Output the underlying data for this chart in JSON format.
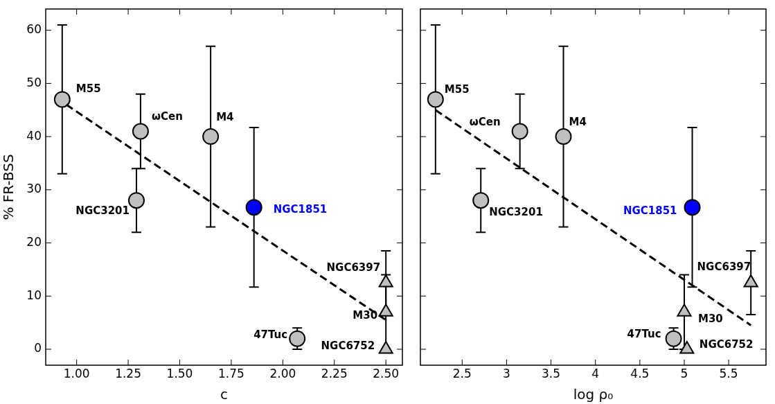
{
  "chart_data": [
    {
      "type": "scatter",
      "xlabel": "c",
      "ylabel": "% FR-BSS",
      "xlim": [
        0.85,
        2.58
      ],
      "xticks": [
        {
          "value": 1,
          "label": "1.00"
        },
        {
          "value": 1.25,
          "label": "1.25"
        },
        {
          "value": 1.5,
          "label": "1.50"
        },
        {
          "value": 1.75,
          "label": "1.75"
        },
        {
          "value": 2,
          "label": "2.00"
        },
        {
          "value": 2.25,
          "label": "2.25"
        },
        {
          "value": 2.5,
          "label": "2.50"
        }
      ],
      "ylim": [
        -3,
        64
      ],
      "yticks": [
        0,
        10,
        20,
        30,
        40,
        50,
        60
      ],
      "series": [
        {
          "name": "M55",
          "color": "#c0c0c0",
          "marker": "circle",
          "x": [
            0.93
          ],
          "values": [
            47
          ],
          "errors": [
            [
              33,
              61
            ]
          ]
        },
        {
          "name": "ωCen",
          "color": "#c0c0c0",
          "marker": "circle",
          "x": [
            1.31
          ],
          "values": [
            41
          ],
          "errors": [
            [
              34,
              48
            ]
          ]
        },
        {
          "name": "NGC3201",
          "color": "#c0c0c0",
          "marker": "circle",
          "x": [
            1.29
          ],
          "values": [
            28
          ],
          "errors": [
            [
              22,
              34
            ]
          ]
        },
        {
          "name": "M4",
          "color": "#c0c0c0",
          "marker": "circle",
          "x": [
            1.65
          ],
          "values": [
            40
          ],
          "errors": [
            [
              23,
              57
            ]
          ]
        },
        {
          "name": "NGC1851",
          "color": "#0000ff",
          "marker": "circle",
          "x": [
            1.86
          ],
          "values": [
            26.7
          ],
          "errors": [
            [
              11.7,
              41.7
            ]
          ]
        },
        {
          "name": "47Tuc",
          "color": "#c0c0c0",
          "marker": "circle",
          "x": [
            2.07
          ],
          "values": [
            2
          ],
          "errors": [
            [
              0,
              4
            ]
          ]
        },
        {
          "name": "NGC6397",
          "color": "#c0c0c0",
          "marker": "triangle",
          "x": [
            2.5
          ],
          "values": [
            12.5
          ],
          "errors": [
            [
              6.5,
              18.5
            ]
          ]
        },
        {
          "name": "M30",
          "color": "#c0c0c0",
          "marker": "triangle",
          "x": [
            2.5
          ],
          "values": [
            7
          ],
          "errors": [
            [
              0,
              14
            ]
          ]
        },
        {
          "name": "NGC6752",
          "color": "#c0c0c0",
          "marker": "triangle",
          "x": [
            2.5
          ],
          "values": [
            0
          ]
        },
        {
          "type": "line",
          "color": "#000000",
          "line_style": "dashed",
          "marker": "none",
          "x": [
            0.95,
            2.5
          ],
          "values": [
            46,
            5.5
          ]
        }
      ]
    },
    {
      "type": "scatter",
      "xlabel": "log ρ₀",
      "xlim": [
        2.03,
        5.92
      ],
      "xticks": [
        2.5,
        3.0,
        3.5,
        4.0,
        4.5,
        5.0,
        5.5
      ],
      "ylim": [
        -3,
        64
      ],
      "yticks": [
        0,
        10,
        20,
        30,
        40,
        50,
        60
      ],
      "tick_labels": "x",
      "series": [
        {
          "name": "M55",
          "color": "#c0c0c0",
          "marker": "circle",
          "x": [
            2.2
          ],
          "values": [
            47
          ],
          "errors": [
            [
              33,
              61
            ]
          ]
        },
        {
          "name": "NGC3201",
          "color": "#c0c0c0",
          "marker": "circle",
          "x": [
            2.71
          ],
          "values": [
            28
          ],
          "errors": [
            [
              22,
              34
            ]
          ]
        },
        {
          "name": "ωCen",
          "color": "#c0c0c0",
          "marker": "circle",
          "x": [
            3.15
          ],
          "values": [
            41
          ],
          "errors": [
            [
              34,
              48
            ]
          ]
        },
        {
          "name": "M4",
          "color": "#c0c0c0",
          "marker": "circle",
          "x": [
            3.64
          ],
          "values": [
            40
          ],
          "errors": [
            [
              23,
              57
            ]
          ]
        },
        {
          "name": "NGC1851",
          "color": "#0000ff",
          "marker": "circle",
          "x": [
            5.09
          ],
          "values": [
            26.7
          ],
          "errors": [
            [
              11.7,
              41.7
            ]
          ]
        },
        {
          "name": "47Tuc",
          "color": "#c0c0c0",
          "marker": "circle",
          "x": [
            4.88
          ],
          "values": [
            2
          ],
          "errors": [
            [
              0,
              4
            ]
          ]
        },
        {
          "name": "M30",
          "color": "#c0c0c0",
          "marker": "triangle",
          "x": [
            5.0
          ],
          "values": [
            7
          ],
          "errors": [
            [
              0,
              14
            ]
          ]
        },
        {
          "name": "NGC6752",
          "color": "#c0c0c0",
          "marker": "triangle",
          "x": [
            5.03
          ],
          "values": [
            0
          ]
        },
        {
          "name": "NGC6397",
          "color": "#c0c0c0",
          "marker": "triangle",
          "x": [
            5.75
          ],
          "values": [
            12.5
          ],
          "errors": [
            [
              6.5,
              18.5
            ]
          ]
        },
        {
          "type": "line",
          "color": "#000000",
          "line_style": "dashed",
          "marker": "none",
          "x": [
            2.2,
            5.75
          ],
          "values": [
            45,
            4.5
          ]
        }
      ]
    }
  ]
}
